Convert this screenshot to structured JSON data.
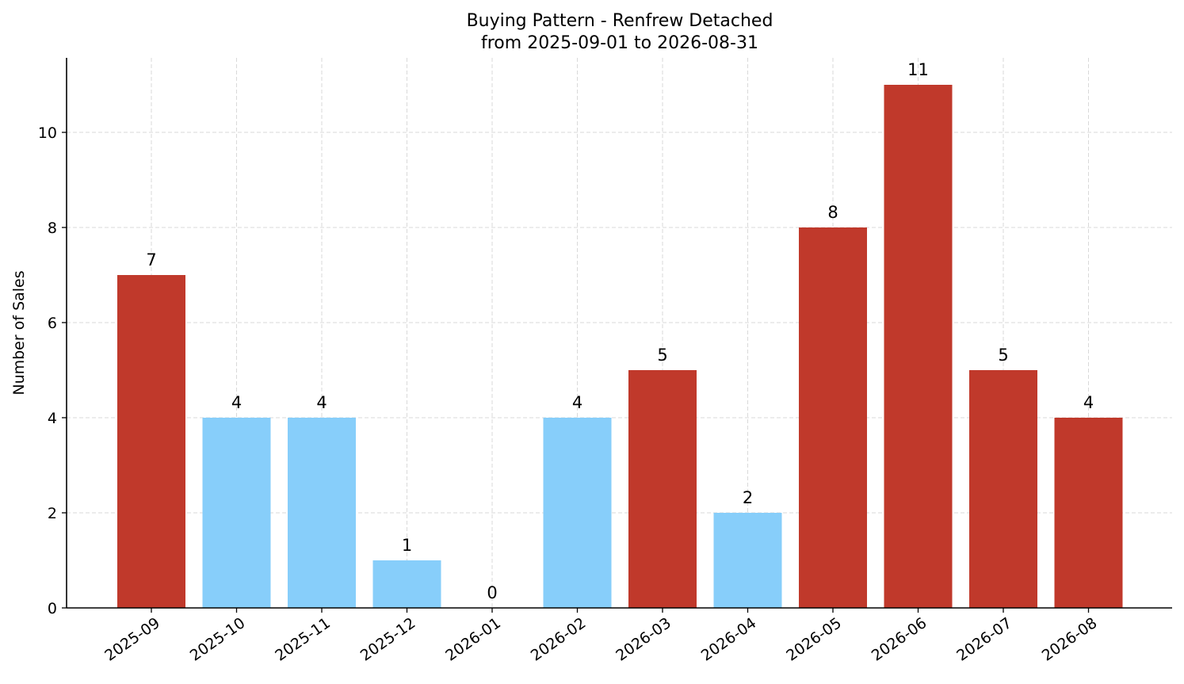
{
  "chart_data": {
    "type": "bar",
    "title": "Buying Pattern - Renfrew Detached",
    "subtitle": "from 2025-09-01 to 2026-08-31",
    "xlabel": "",
    "ylabel": "Number of Sales",
    "categories": [
      "2025-09",
      "2025-10",
      "2025-11",
      "2025-12",
      "2026-01",
      "2026-02",
      "2026-03",
      "2026-04",
      "2026-05",
      "2026-06",
      "2026-07",
      "2026-08"
    ],
    "values": [
      7,
      4,
      4,
      1,
      0,
      4,
      5,
      2,
      8,
      11,
      5,
      4
    ],
    "bar_colors": [
      "#c0392b",
      "#87cefa",
      "#87cefa",
      "#87cefa",
      "#87cefa",
      "#87cefa",
      "#c0392b",
      "#87cefa",
      "#c0392b",
      "#c0392b",
      "#c0392b",
      "#c0392b"
    ],
    "ylim": [
      0,
      11.55
    ],
    "yticks": [
      0,
      2,
      4,
      6,
      8,
      10
    ],
    "grid": true,
    "legend": "none"
  }
}
